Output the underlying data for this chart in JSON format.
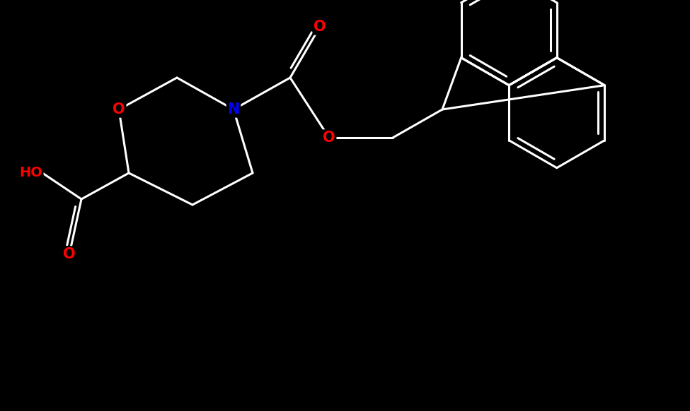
{
  "background_color": "#000000",
  "bond_color": "#ffffff",
  "N_color": "#0000ff",
  "O_color": "#ff0000",
  "lw": 2.2,
  "doff": 0.07,
  "fs": 15,
  "figsize": [
    9.75,
    5.82
  ],
  "dpi": 100,
  "xlim": [
    0,
    9.75
  ],
  "ylim": [
    0,
    5.82
  ]
}
